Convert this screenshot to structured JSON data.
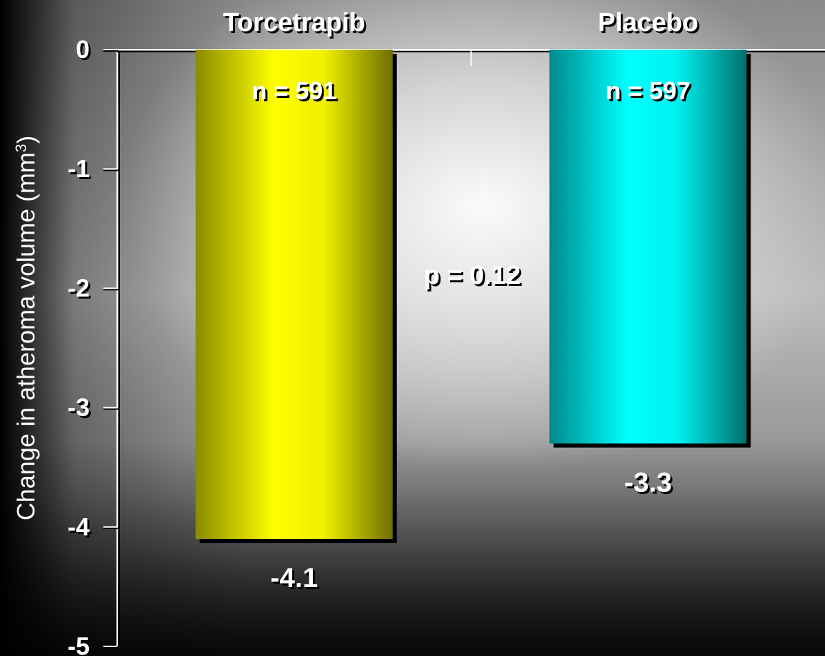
{
  "chart_data": {
    "type": "bar",
    "categories": [
      "Torcetrapib",
      "Placebo"
    ],
    "values": [
      -4.1,
      -3.3
    ],
    "value_labels": [
      "-4.1",
      "-3.3"
    ],
    "n_labels": [
      "n = 591",
      "n = 597"
    ],
    "bar_colors": [
      "#ffff00",
      "#00ffff"
    ],
    "bar_edge_colors": [
      "#7a7a00",
      "#007878"
    ],
    "ylabel_main": "Change in atheroma volume (mm",
    "ylabel_sup": "3",
    "ylabel_end": ")",
    "ylim": [
      -5,
      0
    ],
    "y_ticks": [
      0,
      -1,
      -2,
      -3,
      -4,
      -5
    ],
    "y_tick_labels": [
      "0",
      "-1",
      "-2",
      "-3",
      "-4",
      "-5"
    ],
    "annotation": "p = 0.12",
    "grid": false,
    "category_axis_position": "top"
  }
}
